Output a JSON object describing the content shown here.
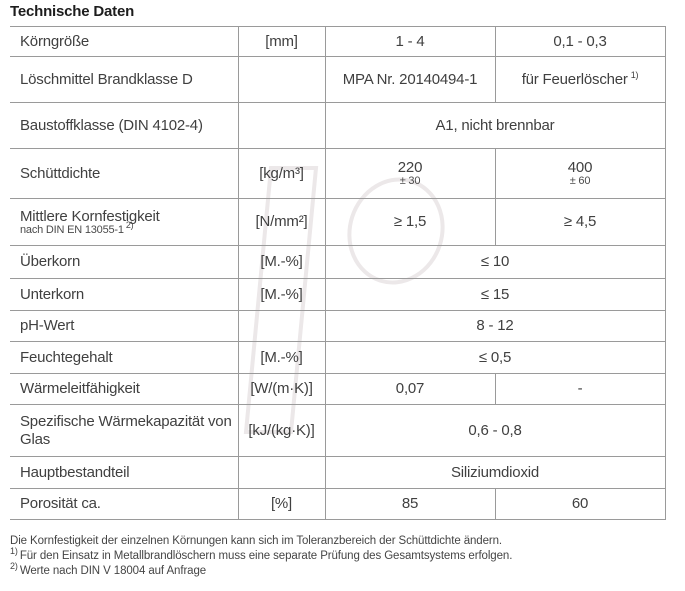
{
  "title": "Technische Daten",
  "colors": {
    "line": "#9a9a9a",
    "text": "#404040",
    "title": "#1d1d1d",
    "watermark": "#ece8e9"
  },
  "table": {
    "rows": [
      {
        "label": "Körngröße",
        "unit": "[mm]",
        "cells": [
          {
            "text": "1 - 4"
          },
          {
            "text": "0,1 - 0,3"
          }
        ]
      },
      {
        "label": "Löschmittel Brandklasse D",
        "unit": "",
        "cells": [
          {
            "text": "MPA Nr. 20140494-1"
          },
          {
            "text": "für Feuerlöscher",
            "sup": "1)"
          }
        ]
      },
      {
        "label": "Baustoffklasse (DIN 4102-4)",
        "unit": "",
        "cells": [
          {
            "text": "A1, nicht brennbar",
            "span": 2
          }
        ]
      },
      {
        "label": "Schüttdichte",
        "unit": "[kg/m³]",
        "cells": [
          {
            "text": "220",
            "sub": "± 30"
          },
          {
            "text": "400",
            "sub": "± 60"
          }
        ]
      },
      {
        "label": "Mittlere Kornfestigkeit",
        "label_sub": "nach DIN EN 13055-1",
        "label_sub_sup": "2)",
        "unit": "[N/mm²]",
        "cells": [
          {
            "text": "≥ 1,5"
          },
          {
            "text": "≥ 4,5"
          }
        ]
      },
      {
        "label": "Überkorn",
        "unit": "[M.-%]",
        "cells": [
          {
            "text": "≤ 10",
            "span": 2
          }
        ]
      },
      {
        "label": "Unterkorn",
        "unit": "[M.-%]",
        "cells": [
          {
            "text": "≤ 15",
            "span": 2
          }
        ]
      },
      {
        "label": "pH-Wert",
        "unit": "",
        "cells": [
          {
            "text": "8 - 12",
            "span": 2
          }
        ]
      },
      {
        "label": "Feuchtegehalt",
        "unit": "[M.-%]",
        "cells": [
          {
            "text": "≤ 0,5",
            "span": 2
          }
        ]
      },
      {
        "label": "Wärmeleitfähigkeit",
        "unit": "[W/(m·K)]",
        "cells": [
          {
            "text": "0,07"
          },
          {
            "text": "-"
          }
        ]
      },
      {
        "label": "Spezifische Wärmekapazität von Glas",
        "unit": "[kJ/(kg·K)]",
        "cells": [
          {
            "text": "0,6 - 0,8",
            "span": 2
          }
        ]
      },
      {
        "label": "Hauptbestandteil",
        "unit": "",
        "cells": [
          {
            "text": "Siliziumdioxid",
            "span": 2
          }
        ]
      },
      {
        "label": "Porosität ca.",
        "unit": "[%]",
        "cells": [
          {
            "text": "85"
          },
          {
            "text": "60"
          }
        ]
      }
    ]
  },
  "footnotes": [
    {
      "sup": "",
      "text": "Die Kornfestigkeit der einzelnen Körnungen kann sich im Toleranzbereich der Schüttdichte ändern."
    },
    {
      "sup": "1)",
      "text": "Für den Einsatz in Metallbrandlöschern muss eine separate Prüfung des Gesamtsystems erfolgen."
    },
    {
      "sup": "2)",
      "text": "Werte nach DIN V 18004 auf Anfrage"
    }
  ]
}
